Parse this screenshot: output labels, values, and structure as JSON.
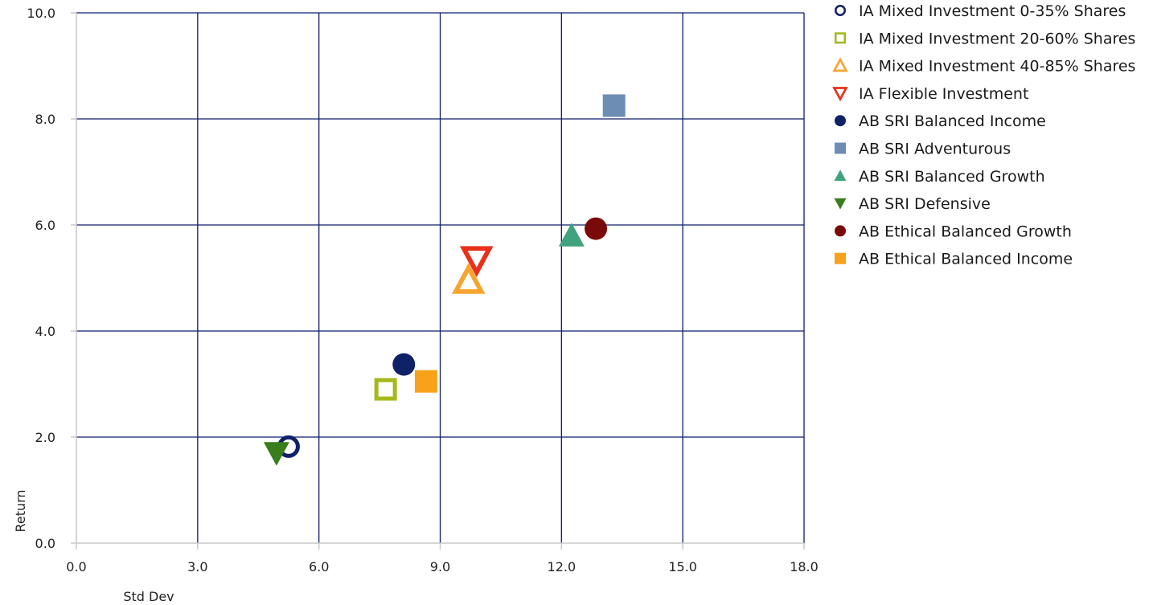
{
  "chart_data": {
    "type": "scatter",
    "title": "",
    "xlabel": "Std Dev",
    "ylabel": "Return",
    "xlim": [
      0,
      18
    ],
    "ylim": [
      0,
      10
    ],
    "xticks": [
      "0.0",
      "3.0",
      "6.0",
      "9.0",
      "12.0",
      "15.0",
      "18.0"
    ],
    "yticks": [
      "0.0",
      "2.0",
      "4.0",
      "6.0",
      "8.0",
      "10.0"
    ],
    "grid": true,
    "legend_position": "right",
    "series": [
      {
        "name": "IA Mixed Investment 0-35% Shares",
        "marker": "circle-open",
        "color": "#0f2167",
        "x": 5.25,
        "y": 1.82
      },
      {
        "name": "IA Mixed Investment 20-60% Shares",
        "marker": "square-open",
        "color": "#a5b81b",
        "x": 7.65,
        "y": 2.9
      },
      {
        "name": "IA Mixed Investment 40-85% Shares",
        "marker": "triangle-up-open",
        "color": "#f7a532",
        "x": 9.7,
        "y": 4.95
      },
      {
        "name": "IA Flexible Investment",
        "marker": "triangle-down-open",
        "color": "#e8311a",
        "x": 9.9,
        "y": 5.35
      },
      {
        "name": "AB SRI Balanced Income",
        "marker": "circle",
        "color": "#0f2167",
        "x": 8.1,
        "y": 3.37
      },
      {
        "name": "AB SRI Adventurous",
        "marker": "square",
        "color": "#6e8db5",
        "x": 13.3,
        "y": 8.25
      },
      {
        "name": "AB SRI Balanced Growth",
        "marker": "triangle-up",
        "color": "#3fa37e",
        "x": 12.25,
        "y": 5.8
      },
      {
        "name": "AB SRI Defensive",
        "marker": "triangle-down",
        "color": "#3a7d1d",
        "x": 4.95,
        "y": 1.7
      },
      {
        "name": "AB Ethical Balanced Growth",
        "marker": "circle",
        "color": "#7a0a0a",
        "x": 12.85,
        "y": 5.93
      },
      {
        "name": "AB Ethical Balanced Income",
        "marker": "square",
        "color": "#f7a21a",
        "x": 8.65,
        "y": 3.05
      }
    ]
  },
  "colors": {
    "grid": "#0f1d6b",
    "axis": "#c8c8c8"
  }
}
